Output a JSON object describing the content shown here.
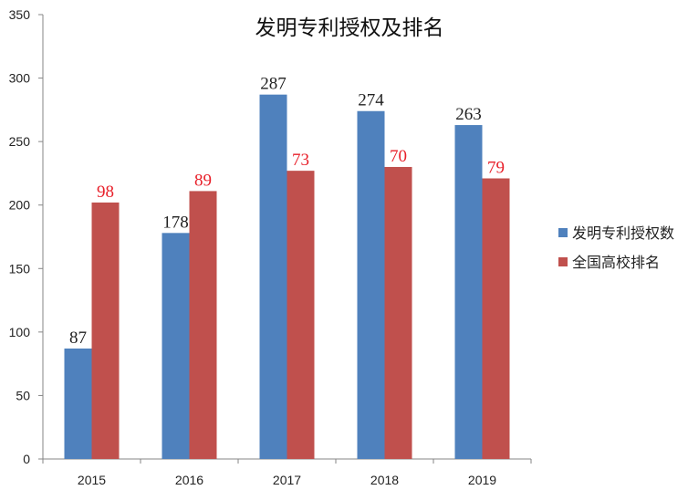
{
  "chart_data": {
    "type": "bar",
    "title": "发明专利授权及排名",
    "categories": [
      "2015",
      "2016",
      "2017",
      "2018",
      "2019"
    ],
    "series": [
      {
        "name": "发明专利授权数",
        "values": [
          87,
          178,
          287,
          274,
          263
        ],
        "labels": [
          "87",
          "178",
          "287",
          "274",
          "263"
        ],
        "color": "#4f81bd",
        "label_color": "#222222"
      },
      {
        "name": "全国高校排名",
        "values": [
          98,
          89,
          73,
          70,
          79
        ],
        "plotted_as": "300 minus rank",
        "labels": [
          "98",
          "89",
          "73",
          "70",
          "79"
        ],
        "color": "#c0504d",
        "label_color": "#e8202a"
      }
    ],
    "yticks": [
      "0",
      "50",
      "100",
      "150",
      "200",
      "250",
      "300",
      "350"
    ],
    "ylim": [
      0,
      350
    ],
    "xlabel": "",
    "ylabel": "",
    "grid": false,
    "legend": "right"
  }
}
